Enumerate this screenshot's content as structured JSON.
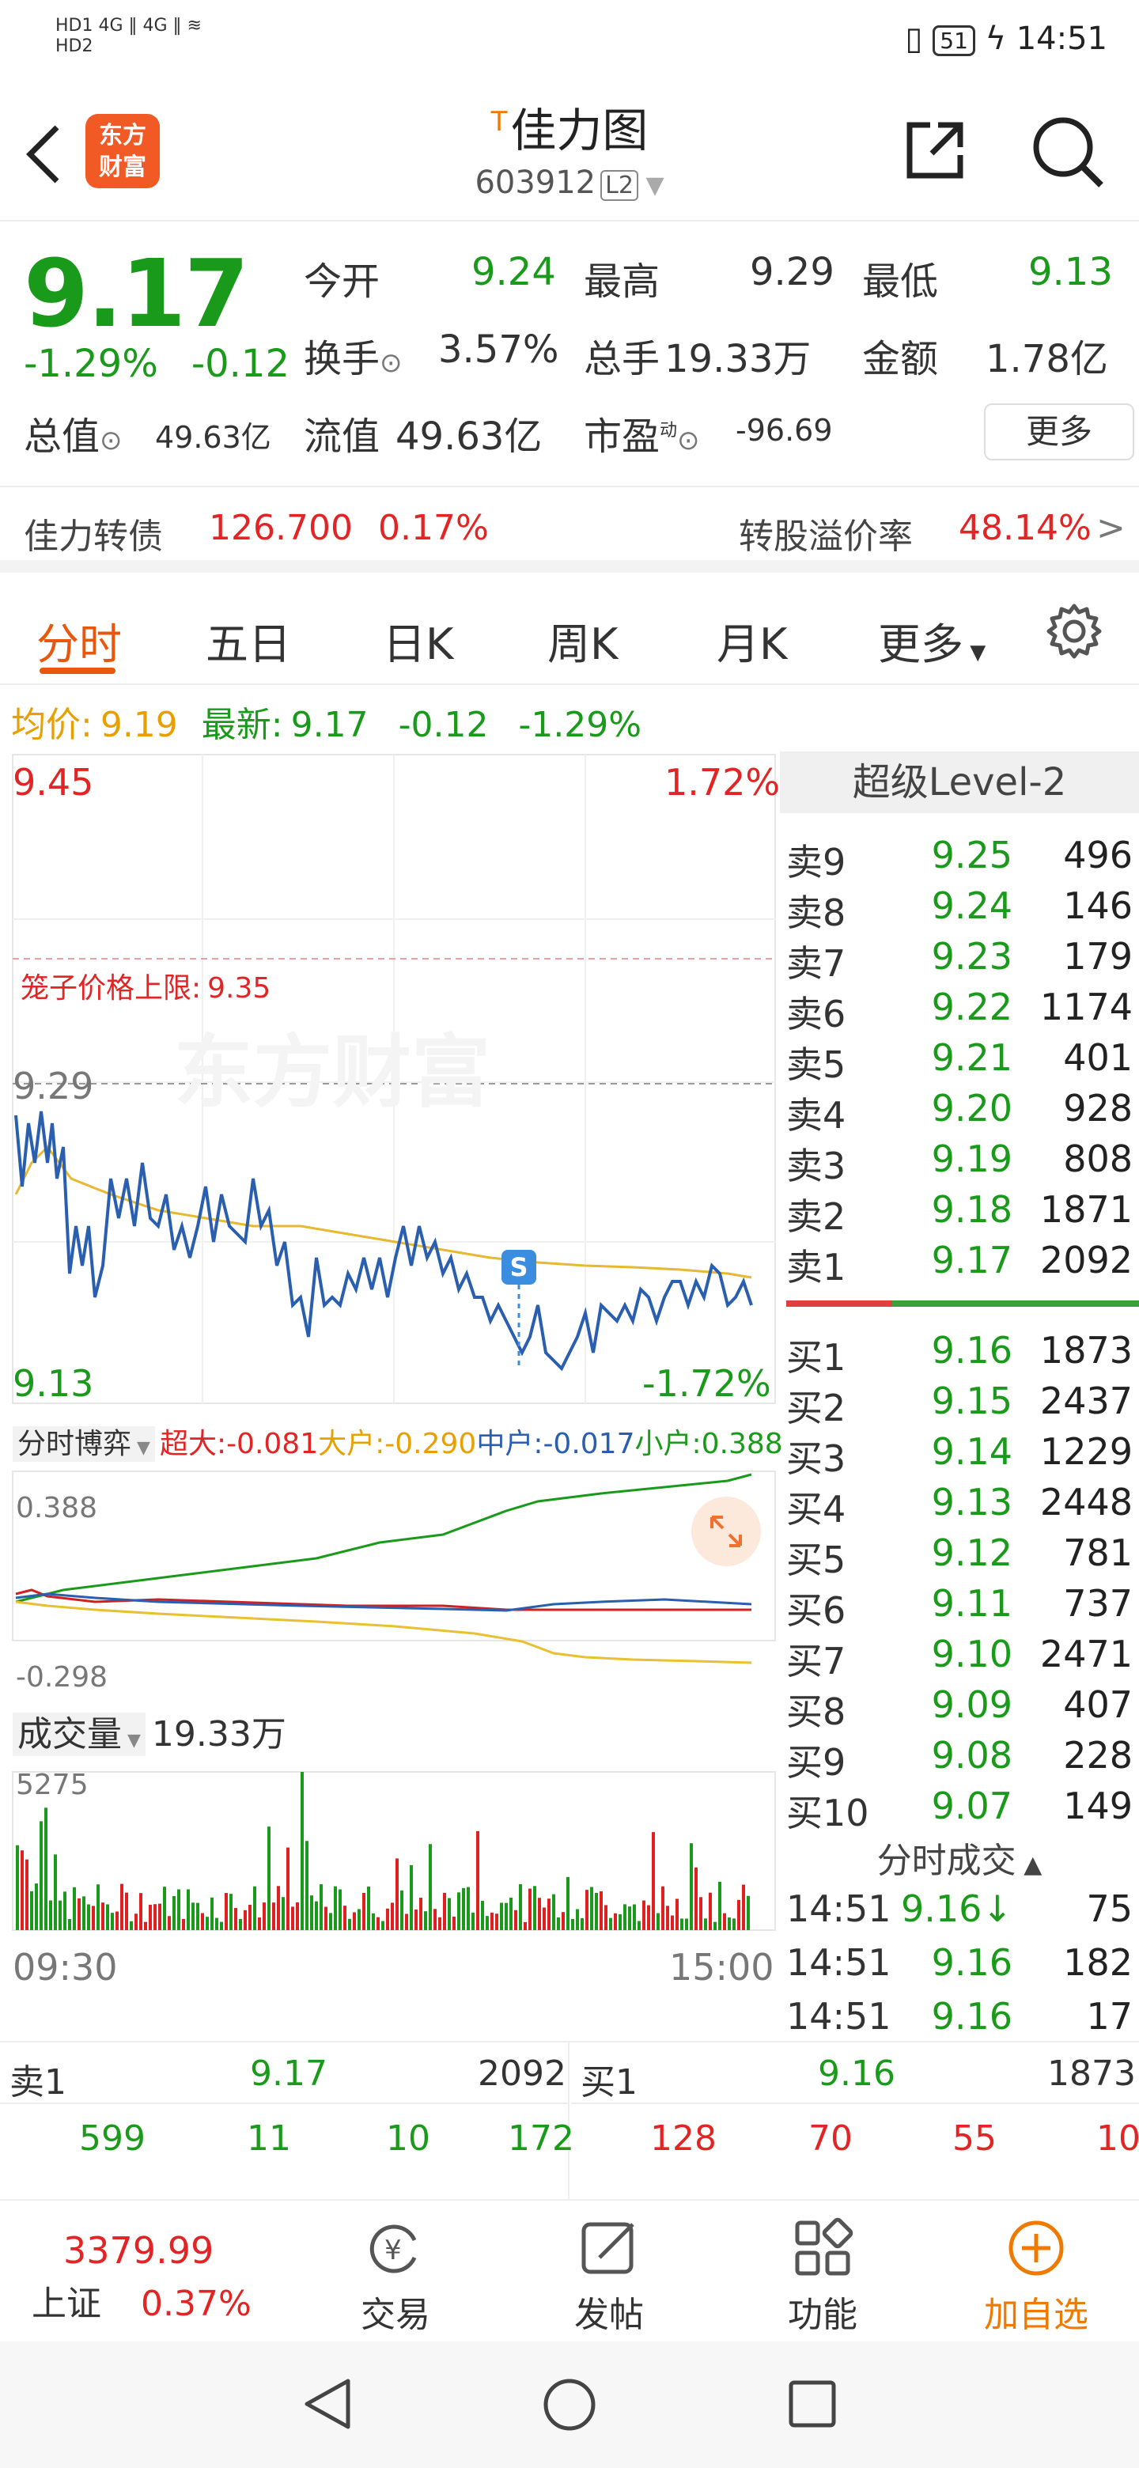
{
  "status_bar": {
    "left_top": "HD1 4G ‖ 4G ‖ ≋",
    "left_bottom": "HD2",
    "battery": "51",
    "time": "14:51"
  },
  "nav": {
    "logo": "东方\n财富",
    "title": "佳力图",
    "title_marker": "T",
    "code": "603912",
    "level": "L2"
  },
  "quote": {
    "price": "9.17",
    "pct": "-1.29%",
    "chg": "-0.12",
    "open_label": "今开",
    "open": "9.24",
    "high_label": "最高",
    "high": "9.29",
    "low_label": "最低",
    "low": "9.13",
    "turnover_label": "换手",
    "turnover": "3.57%",
    "volume_label": "总手",
    "volume": "19.33万",
    "amount_label": "金额",
    "amount": "1.78亿",
    "mktcap_label": "总值",
    "mktcap": "49.63亿",
    "float_label": "流值",
    "float": "49.63亿",
    "pe_label": "市盈",
    "pe_sup": "动",
    "pe": "-96.69",
    "more": "更多"
  },
  "bond": {
    "name": "佳力转债",
    "price": "126.700",
    "pct": "0.17%",
    "premium_label": "转股溢价率",
    "premium": "48.14%",
    "arrow": ">"
  },
  "tabs": [
    "分时",
    "五日",
    "日K",
    "周K",
    "月K",
    "更多"
  ],
  "avg_line": {
    "avg_label": "均价:",
    "avg": "9.19",
    "latest_label": "最新:",
    "latest": "9.17",
    "chg": "-0.12",
    "pct": "-1.29%"
  },
  "chart": {
    "top_price": "9.45",
    "top_pct": "1.72%",
    "limit_label": "笼子价格上限:",
    "limit_value": "9.35",
    "prev_close": "9.29",
    "bottom_price": "9.13",
    "bottom_pct": "-1.72%",
    "watermark": "东方财富",
    "marker": "S",
    "flow_selector": "分时博弈",
    "flow_super": "超大:-0.081",
    "flow_big": "大户:-0.290",
    "flow_mid": "中户:-0.017",
    "flow_small": "小户:0.388",
    "flow_max": "0.388",
    "flow_min": "-0.298",
    "vol_selector": "成交量",
    "vol_total": "19.33万",
    "vol_max": "5275",
    "time_start": "09:30",
    "time_end": "15:00"
  },
  "order_book": {
    "title": "超级Level-2",
    "asks": [
      {
        "name": "卖9",
        "price": "9.25",
        "vol": "496"
      },
      {
        "name": "卖8",
        "price": "9.24",
        "vol": "146"
      },
      {
        "name": "卖7",
        "price": "9.23",
        "vol": "179"
      },
      {
        "name": "卖6",
        "price": "9.22",
        "vol": "1174"
      },
      {
        "name": "卖5",
        "price": "9.21",
        "vol": "401"
      },
      {
        "name": "卖4",
        "price": "9.20",
        "vol": "928"
      },
      {
        "name": "卖3",
        "price": "9.19",
        "vol": "808"
      },
      {
        "name": "卖2",
        "price": "9.18",
        "vol": "1871"
      },
      {
        "name": "卖1",
        "price": "9.17",
        "vol": "2092"
      }
    ],
    "bids": [
      {
        "name": "买1",
        "price": "9.16",
        "vol": "1873"
      },
      {
        "name": "买2",
        "price": "9.15",
        "vol": "2437"
      },
      {
        "name": "买3",
        "price": "9.14",
        "vol": "1229"
      },
      {
        "name": "买4",
        "price": "9.13",
        "vol": "2448"
      },
      {
        "name": "买5",
        "price": "9.12",
        "vol": "781"
      },
      {
        "name": "买6",
        "price": "9.11",
        "vol": "737"
      },
      {
        "name": "买7",
        "price": "9.10",
        "vol": "2471"
      },
      {
        "name": "买8",
        "price": "9.09",
        "vol": "407"
      },
      {
        "name": "买9",
        "price": "9.08",
        "vol": "228"
      },
      {
        "name": "买10",
        "price": "9.07",
        "vol": "149"
      }
    ],
    "ticks_title": "分时成交",
    "ticks": [
      {
        "time": "14:51",
        "price": "9.16↓",
        "vol": "75"
      },
      {
        "time": "14:51",
        "price": "9.16",
        "vol": "182"
      },
      {
        "time": "14:51",
        "price": "9.16",
        "vol": "17"
      }
    ]
  },
  "queue": {
    "sell_label": "卖1",
    "sell_price": "9.17",
    "sell_vol": "2092",
    "buy_label": "买1",
    "buy_price": "9.16",
    "buy_vol": "1873",
    "sell_q": [
      "599",
      "11",
      "10",
      "172"
    ],
    "buy_q": [
      "128",
      "70",
      "55",
      "10"
    ]
  },
  "bottom_nav": {
    "index_value": "3379.99",
    "index_name": "上证",
    "index_pct": "0.37%",
    "trade": "交易",
    "post": "发帖",
    "func": "功能",
    "add": "加自选"
  }
}
